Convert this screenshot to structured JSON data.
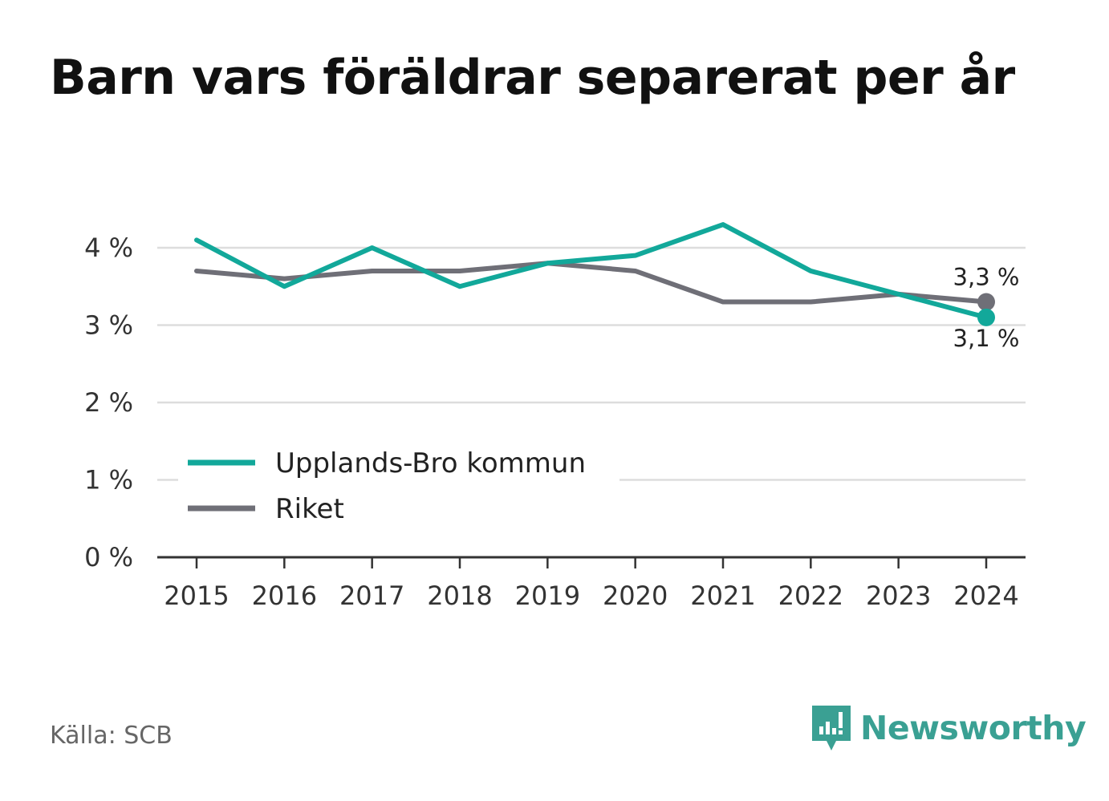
{
  "title": "Barn vars föräldrar separerat per år",
  "source": "Källa: SCB",
  "brand": {
    "name": "Newsworthy",
    "icon": "newsworthy-logo-icon"
  },
  "colors": {
    "primary": "#12a89a",
    "secondary": "#6f6f77",
    "grid": "#dddddd",
    "axis": "#333333"
  },
  "chart_data": {
    "type": "line",
    "x": [
      "2015",
      "2016",
      "2017",
      "2018",
      "2019",
      "2020",
      "2021",
      "2022",
      "2023",
      "2024"
    ],
    "series": [
      {
        "name": "Upplands-Bro kommun",
        "color": "#12a89a",
        "values": [
          4.1,
          3.5,
          4.0,
          3.5,
          3.8,
          3.9,
          4.3,
          3.7,
          3.4,
          3.1
        ]
      },
      {
        "name": "Riket",
        "color": "#6f6f77",
        "values": [
          3.7,
          3.6,
          3.7,
          3.7,
          3.8,
          3.7,
          3.3,
          3.3,
          3.4,
          3.3
        ]
      }
    ],
    "y_ticks": [
      {
        "value": 0,
        "label": "0 %"
      },
      {
        "value": 1,
        "label": "1 %"
      },
      {
        "value": 2,
        "label": "2 %"
      },
      {
        "value": 3,
        "label": "3 %"
      },
      {
        "value": 4,
        "label": "4 %"
      }
    ],
    "ylim": [
      0,
      4
    ],
    "grid": true,
    "legend_position": "bottom-left",
    "end_labels": {
      "Upplands-Bro kommun": "3,1 %",
      "Riket": "3,3 %"
    },
    "xlabel": "",
    "ylabel": ""
  }
}
